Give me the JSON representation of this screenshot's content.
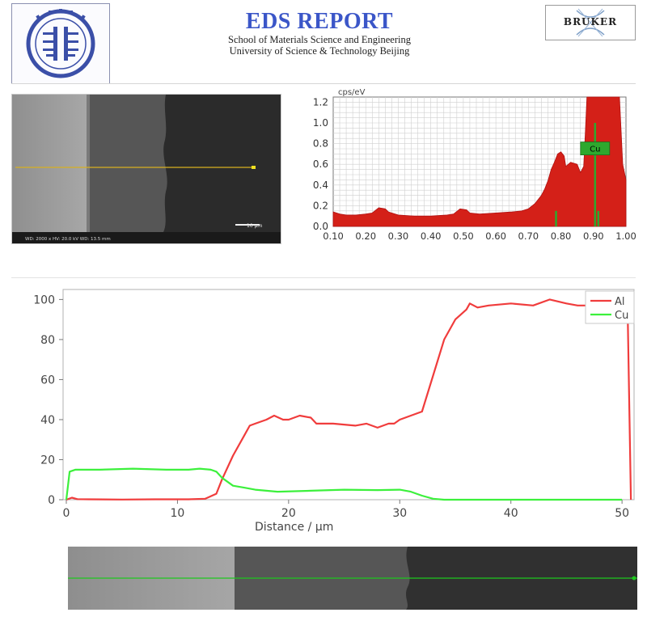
{
  "header": {
    "title": "EDS REPORT",
    "subtitle_line1": "School of Materials Science and Engineering",
    "subtitle_line2": "University of Science & Technology Beijing",
    "right_logo_text": "BRUKER"
  },
  "sem_image": {
    "info_text": "WD: 2000 x  HV: 20.0 kV  WD: 13.5 mm",
    "scale_bar_label": "10 µm"
  },
  "colors": {
    "spectrum_fill": "#d42018",
    "peak_marker": "#2ea82e",
    "al_line": "#f03c3c",
    "cu_line": "#3cf03c",
    "scan_line_top": "#d8b020",
    "scan_line_bottom": "#1ec81e"
  },
  "chart_data": [
    {
      "type": "area",
      "ylabel": "cps/eV",
      "xlim": [
        0.1,
        1.0
      ],
      "ylim": [
        0,
        1.25
      ],
      "xticks": [
        "0.10",
        "0.20",
        "0.30",
        "0.40",
        "0.50",
        "0.60",
        "0.70",
        "0.80",
        "0.90",
        "1.00"
      ],
      "yticks": [
        "0.0",
        "0.2",
        "0.4",
        "0.6",
        "0.8",
        "1.0",
        "1.2"
      ],
      "grid": true,
      "annotation": "Cu",
      "series": [
        {
          "x": [
            0.1,
            0.12,
            0.14,
            0.17,
            0.2,
            0.22,
            0.24,
            0.26,
            0.27,
            0.3,
            0.35,
            0.4,
            0.45,
            0.47,
            0.49,
            0.51,
            0.52,
            0.55,
            0.6,
            0.65,
            0.68,
            0.7,
            0.72,
            0.74,
            0.75,
            0.76,
            0.77,
            0.78,
            0.79,
            0.8,
            0.81,
            0.815,
            0.83,
            0.85,
            0.86,
            0.87,
            0.875,
            0.88,
            0.9,
            0.95,
            0.98,
            0.99,
            1.0
          ],
          "y": [
            0.14,
            0.12,
            0.11,
            0.11,
            0.12,
            0.13,
            0.18,
            0.17,
            0.14,
            0.11,
            0.1,
            0.1,
            0.11,
            0.12,
            0.17,
            0.16,
            0.13,
            0.12,
            0.13,
            0.14,
            0.15,
            0.17,
            0.22,
            0.3,
            0.36,
            0.44,
            0.55,
            0.62,
            0.7,
            0.72,
            0.68,
            0.58,
            0.62,
            0.6,
            0.52,
            0.58,
            0.9,
            1.25,
            1.25,
            1.25,
            1.25,
            0.6,
            0.45
          ]
        }
      ],
      "markers": [
        0.785,
        0.905,
        0.915
      ]
    },
    {
      "type": "line",
      "xlabel": "Distance / µm",
      "ylabel": "",
      "xlim": [
        0,
        51
      ],
      "ylim": [
        0,
        105
      ],
      "xticks": [
        "0",
        "10",
        "20",
        "30",
        "40",
        "50"
      ],
      "yticks": [
        "0",
        "20",
        "40",
        "60",
        "80",
        "100"
      ],
      "legend": "top-right",
      "grid": false,
      "series": [
        {
          "name": "Al",
          "x": [
            0,
            0.5,
            1,
            2,
            5,
            8,
            11,
            12.5,
            13.5,
            14,
            15,
            16,
            16.5,
            17,
            18,
            18.7,
            19.5,
            20,
            21,
            22,
            22.5,
            24,
            26,
            27,
            28,
            29,
            29.5,
            30,
            31,
            32,
            33,
            34,
            35,
            36,
            36.3,
            37,
            38,
            40,
            42,
            43.5,
            45,
            46,
            47,
            48,
            49,
            50,
            50.5,
            50.8
          ],
          "y": [
            0,
            1,
            0.3,
            0.2,
            0.1,
            0.2,
            0.2,
            0.5,
            3,
            10,
            22,
            32,
            37,
            38,
            40,
            42,
            40,
            40,
            42,
            41,
            38,
            38,
            37,
            38,
            36,
            38,
            38,
            40,
            42,
            44,
            62,
            80,
            90,
            95,
            98,
            96,
            97,
            98,
            97,
            100,
            98,
            97,
            97,
            98,
            96,
            97,
            96,
            0
          ]
        },
        {
          "name": "Cu",
          "x": [
            0,
            0.3,
            0.8,
            3,
            6,
            9,
            11,
            12,
            13,
            13.5,
            14,
            15,
            16,
            17,
            19,
            22,
            25,
            28,
            30,
            31,
            32,
            33,
            34,
            36,
            40,
            45,
            50
          ],
          "y": [
            0,
            14,
            15,
            15,
            15.5,
            15,
            15,
            15.5,
            15,
            14,
            11,
            7,
            6,
            5,
            4,
            4.5,
            5,
            4.8,
            5,
            4,
            2,
            0.5,
            0,
            0,
            0,
            0,
            0
          ]
        }
      ]
    }
  ]
}
